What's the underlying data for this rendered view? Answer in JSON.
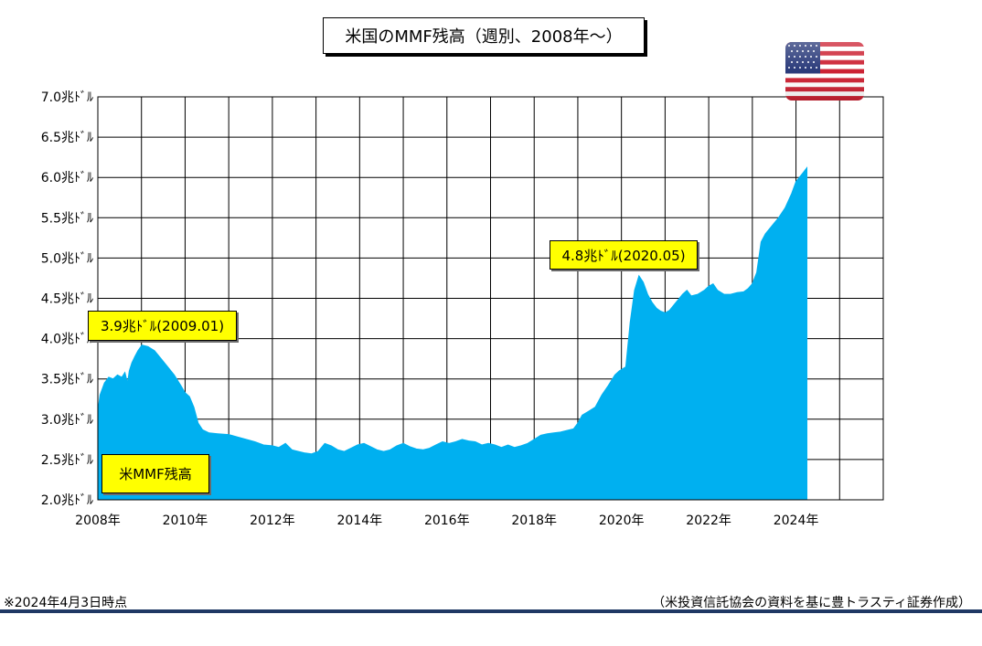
{
  "chart_data": {
    "type": "area",
    "title": "米国のMMF残高（週別、2008年～）",
    "series": [
      {
        "name": "米MMF残高",
        "color": "#00b0f0",
        "points": [
          [
            2008.0,
            3.1
          ],
          [
            2008.05,
            3.3
          ],
          [
            2008.15,
            3.45
          ],
          [
            2008.25,
            3.52
          ],
          [
            2008.35,
            3.5
          ],
          [
            2008.45,
            3.55
          ],
          [
            2008.55,
            3.52
          ],
          [
            2008.62,
            3.58
          ],
          [
            2008.68,
            3.45
          ],
          [
            2008.72,
            3.6
          ],
          [
            2008.78,
            3.7
          ],
          [
            2008.85,
            3.78
          ],
          [
            2008.92,
            3.85
          ],
          [
            2009.01,
            3.92
          ],
          [
            2009.15,
            3.9
          ],
          [
            2009.3,
            3.85
          ],
          [
            2009.45,
            3.75
          ],
          [
            2009.6,
            3.65
          ],
          [
            2009.75,
            3.55
          ],
          [
            2009.9,
            3.42
          ],
          [
            2010.0,
            3.33
          ],
          [
            2010.1,
            3.28
          ],
          [
            2010.2,
            3.15
          ],
          [
            2010.3,
            2.95
          ],
          [
            2010.4,
            2.87
          ],
          [
            2010.55,
            2.83
          ],
          [
            2010.75,
            2.82
          ],
          [
            2011.0,
            2.81
          ],
          [
            2011.2,
            2.78
          ],
          [
            2011.4,
            2.75
          ],
          [
            2011.6,
            2.72
          ],
          [
            2011.8,
            2.68
          ],
          [
            2012.0,
            2.67
          ],
          [
            2012.15,
            2.65
          ],
          [
            2012.3,
            2.7
          ],
          [
            2012.45,
            2.62
          ],
          [
            2012.6,
            2.6
          ],
          [
            2012.75,
            2.58
          ],
          [
            2012.9,
            2.57
          ],
          [
            2013.05,
            2.6
          ],
          [
            2013.2,
            2.7
          ],
          [
            2013.35,
            2.67
          ],
          [
            2013.5,
            2.62
          ],
          [
            2013.65,
            2.6
          ],
          [
            2013.8,
            2.64
          ],
          [
            2013.95,
            2.68
          ],
          [
            2014.1,
            2.7
          ],
          [
            2014.25,
            2.66
          ],
          [
            2014.4,
            2.62
          ],
          [
            2014.55,
            2.6
          ],
          [
            2014.7,
            2.62
          ],
          [
            2014.85,
            2.67
          ],
          [
            2015.0,
            2.7
          ],
          [
            2015.15,
            2.66
          ],
          [
            2015.3,
            2.63
          ],
          [
            2015.45,
            2.62
          ],
          [
            2015.6,
            2.64
          ],
          [
            2015.75,
            2.68
          ],
          [
            2015.9,
            2.72
          ],
          [
            2016.05,
            2.7
          ],
          [
            2016.2,
            2.72
          ],
          [
            2016.35,
            2.75
          ],
          [
            2016.5,
            2.73
          ],
          [
            2016.65,
            2.72
          ],
          [
            2016.8,
            2.68
          ],
          [
            2016.95,
            2.7
          ],
          [
            2017.1,
            2.68
          ],
          [
            2017.25,
            2.65
          ],
          [
            2017.4,
            2.68
          ],
          [
            2017.55,
            2.65
          ],
          [
            2017.7,
            2.67
          ],
          [
            2017.85,
            2.7
          ],
          [
            2018.0,
            2.75
          ],
          [
            2018.15,
            2.8
          ],
          [
            2018.3,
            2.82
          ],
          [
            2018.45,
            2.83
          ],
          [
            2018.6,
            2.84
          ],
          [
            2018.75,
            2.86
          ],
          [
            2018.9,
            2.88
          ],
          [
            2019.0,
            2.95
          ],
          [
            2019.1,
            3.05
          ],
          [
            2019.25,
            3.1
          ],
          [
            2019.4,
            3.15
          ],
          [
            2019.55,
            3.3
          ],
          [
            2019.7,
            3.42
          ],
          [
            2019.85,
            3.55
          ],
          [
            2019.95,
            3.6
          ],
          [
            2020.1,
            3.65
          ],
          [
            2020.2,
            4.2
          ],
          [
            2020.3,
            4.6
          ],
          [
            2020.4,
            4.78
          ],
          [
            2020.5,
            4.7
          ],
          [
            2020.6,
            4.55
          ],
          [
            2020.7,
            4.45
          ],
          [
            2020.8,
            4.38
          ],
          [
            2020.9,
            4.34
          ],
          [
            2021.0,
            4.32
          ],
          [
            2021.1,
            4.35
          ],
          [
            2021.25,
            4.45
          ],
          [
            2021.4,
            4.55
          ],
          [
            2021.5,
            4.6
          ],
          [
            2021.6,
            4.53
          ],
          [
            2021.75,
            4.55
          ],
          [
            2021.9,
            4.6
          ],
          [
            2022.0,
            4.65
          ],
          [
            2022.1,
            4.68
          ],
          [
            2022.2,
            4.6
          ],
          [
            2022.35,
            4.55
          ],
          [
            2022.5,
            4.55
          ],
          [
            2022.65,
            4.57
          ],
          [
            2022.8,
            4.58
          ],
          [
            2022.9,
            4.62
          ],
          [
            2023.0,
            4.68
          ],
          [
            2023.1,
            4.82
          ],
          [
            2023.2,
            5.2
          ],
          [
            2023.3,
            5.3
          ],
          [
            2023.45,
            5.4
          ],
          [
            2023.6,
            5.5
          ],
          [
            2023.75,
            5.62
          ],
          [
            2023.9,
            5.8
          ],
          [
            2024.0,
            5.95
          ],
          [
            2024.15,
            6.05
          ],
          [
            2024.25,
            6.12
          ]
        ]
      }
    ],
    "x_range": [
      2008,
      2026
    ],
    "x_ticks": [
      2008,
      2010,
      2012,
      2014,
      2016,
      2018,
      2020,
      2022,
      2024
    ],
    "x_tick_labels": [
      "2008年",
      "2010年",
      "2012年",
      "2014年",
      "2016年",
      "2018年",
      "2020年",
      "2022年",
      "2024年"
    ],
    "ylim": [
      2.0,
      7.0
    ],
    "y_ticks": [
      2.0,
      2.5,
      3.0,
      3.5,
      4.0,
      4.5,
      5.0,
      5.5,
      6.0,
      6.5,
      7.0
    ],
    "y_tick_labels": [
      "2.0兆ﾄﾞﾙ",
      "2.5兆ﾄﾞﾙ",
      "3.0兆ﾄﾞﾙ",
      "3.5兆ﾄﾞﾙ",
      "4.0兆ﾄﾞﾙ",
      "4.5兆ﾄﾞﾙ",
      "5.0兆ﾄﾞﾙ",
      "5.5兆ﾄﾞﾙ",
      "6.0兆ﾄﾞﾙ",
      "6.5兆ﾄﾞﾙ",
      "7.0兆ﾄﾞﾙ"
    ],
    "grid": true,
    "annotations": [
      {
        "text": "3.9兆ﾄﾞﾙ(2009.01)",
        "x": 2009.01,
        "y": 3.9
      },
      {
        "text": "4.8兆ﾄﾞﾙ(2020.05)",
        "x": 2020.4,
        "y": 4.8
      }
    ],
    "series_label": "米MMF残高"
  },
  "footnote": "※2024年4月3日時点",
  "source": "（米投資信託協会の資料を基に豊トラスティ証券作成）",
  "flag": {
    "icon": "us-flag-icon"
  }
}
